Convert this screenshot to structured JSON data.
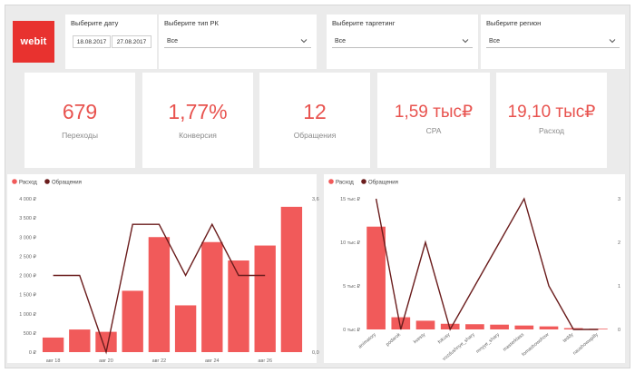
{
  "logo": {
    "text": "webit"
  },
  "filters": {
    "date": {
      "label": "Выберите дату",
      "from": "18.08.2017",
      "to": "27.08.2017"
    },
    "campaign_type": {
      "label": "Выберите тип РК",
      "value": "Все"
    },
    "targeting": {
      "label": "Выберите таргетинг",
      "value": "Все"
    },
    "region": {
      "label": "Выберите регион",
      "value": "Все"
    }
  },
  "kpis": [
    {
      "value": "679",
      "label": "Переходы"
    },
    {
      "value": "1,77%",
      "label": "Конверсия"
    },
    {
      "value": "12",
      "label": "Обращения"
    },
    {
      "value": "1,59 тыс₽",
      "label": "CPA"
    },
    {
      "value": "19,10 тыс₽",
      "label": "Расход"
    }
  ],
  "colors": {
    "accent": "#e8322f",
    "bar": "#f15a5a",
    "line": "#6b1d1d",
    "kpi": "#e8534f"
  },
  "chart_data": [
    {
      "type": "bar",
      "legend": [
        "Расход",
        "Обращения"
      ],
      "legend_position": "top-left",
      "x": [
        "18",
        "19",
        "20",
        "21",
        "22",
        "23",
        "24",
        "25",
        "26",
        "27"
      ],
      "xtick_labels": [
        "авг 18",
        "авг 20",
        "авг 22",
        "авг 24",
        "авг 26"
      ],
      "xtick_positions": [
        "18",
        "20",
        "22",
        "24",
        "26"
      ],
      "series": [
        {
          "name": "Расход",
          "type": "bar",
          "axis": "left",
          "values": [
            380,
            590,
            530,
            1600,
            3000,
            1220,
            2870,
            2390,
            2780,
            3790
          ]
        },
        {
          "name": "Обращения",
          "type": "line",
          "axis": "right",
          "values": [
            1.8,
            1.8,
            0,
            3,
            3,
            1.8,
            3,
            1.8,
            1.8,
            null
          ]
        }
      ],
      "y_left": {
        "min": 0,
        "max": 4000,
        "ticks": [
          0,
          500,
          1000,
          1500,
          2000,
          2500,
          3000,
          3500,
          4000
        ],
        "tick_labels": [
          "0 ₽",
          "500 ₽",
          "1 000 ₽",
          "1 500 ₽",
          "2 000 ₽",
          "2 500 ₽",
          "3 000 ₽",
          "3 500 ₽",
          "4 000 ₽"
        ]
      },
      "y_right": {
        "min": 0,
        "max": 3.6,
        "ticks": [
          0,
          3.6
        ],
        "tick_labels": [
          "0,0",
          "3,6"
        ]
      }
    },
    {
      "type": "bar",
      "legend": [
        "Расход",
        "Обращения"
      ],
      "legend_position": "top-left",
      "categories": [
        "animatory",
        "podarok",
        "kvesty",
        "fokusy",
        "vozdushnye_shary",
        "mnyye_shary",
        "masterklass",
        "fomashowshow",
        "teddy",
        "naushowwpilly"
      ],
      "series": [
        {
          "name": "Расход",
          "type": "bar",
          "axis": "left",
          "values": [
            11800,
            1400,
            1000,
            650,
            600,
            550,
            450,
            350,
            150,
            80
          ]
        },
        {
          "name": "Обращения",
          "type": "line",
          "axis": "right",
          "values": [
            3,
            0,
            2,
            0,
            1,
            2,
            3,
            1,
            0,
            0
          ]
        }
      ],
      "y_left": {
        "min": 0,
        "max": 15000,
        "ticks": [
          0,
          5000,
          10000,
          15000
        ],
        "tick_labels": [
          "0 тыс ₽",
          "5 тыс ₽",
          "10 тыс ₽",
          "15 тыс ₽"
        ]
      },
      "y_right": {
        "min": 0,
        "max": 3,
        "ticks": [
          0,
          1,
          2,
          3
        ],
        "tick_labels": [
          "0",
          "1",
          "2",
          "3"
        ]
      }
    }
  ]
}
